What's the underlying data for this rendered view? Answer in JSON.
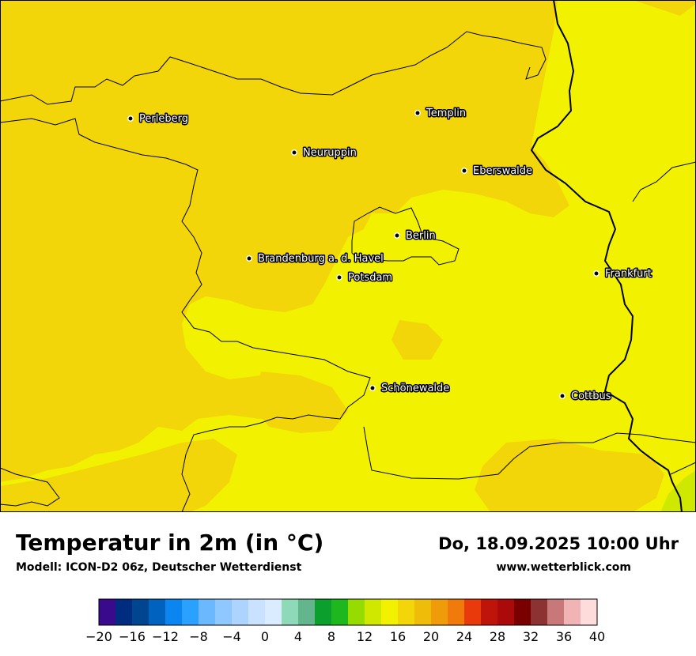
{
  "map": {
    "cities": [
      {
        "name": "Perleberg"
      },
      {
        "name": "Templin"
      },
      {
        "name": "Neuruppin"
      },
      {
        "name": "Eberswalde"
      },
      {
        "name": "Berlin"
      },
      {
        "name": "Brandenburg a. d. Havel"
      },
      {
        "name": "Potsdam"
      },
      {
        "name": "Frankfurt"
      },
      {
        "name": "Schönewalde"
      },
      {
        "name": "Cottbus"
      }
    ],
    "colors": {
      "temp_16_18": "#f2f200",
      "temp_18_20": "#f2d60a",
      "temp_14_16": "#cfe800",
      "border": "#000000",
      "frame": "#000000"
    }
  },
  "header": {
    "title": "Temperatur in 2m (in °C)",
    "model": "Modell: ICON-D2 06z, Deutscher Wetterdienst",
    "datetime": "Do, 18.09.2025 10:00 Uhr",
    "website": "www.wetterblick.com"
  },
  "legend": {
    "min": -20,
    "max": 40,
    "step": 2,
    "ticks": [
      "−20",
      "−16",
      "−12",
      "−8",
      "−4",
      "0",
      "4",
      "8",
      "12",
      "16",
      "20",
      "24",
      "28",
      "32",
      "36",
      "40"
    ],
    "colors": [
      "#3a0a8c",
      "#002c80",
      "#00458f",
      "#0062bf",
      "#0b86f0",
      "#2aa0ff",
      "#6cb8ff",
      "#8ec8ff",
      "#acd4ff",
      "#c8e2ff",
      "#daecff",
      "#8ed9b8",
      "#62b58d",
      "#0b9f2e",
      "#1eb81e",
      "#96dc00",
      "#d0e800",
      "#f2f200",
      "#f2d60a",
      "#f0bc0a",
      "#f09c0a",
      "#f07a0a",
      "#e83a0a",
      "#be140a",
      "#aa0a0a",
      "#7a0000",
      "#8c3232",
      "#c87878",
      "#f0b4b4",
      "#ffdcdc"
    ]
  }
}
